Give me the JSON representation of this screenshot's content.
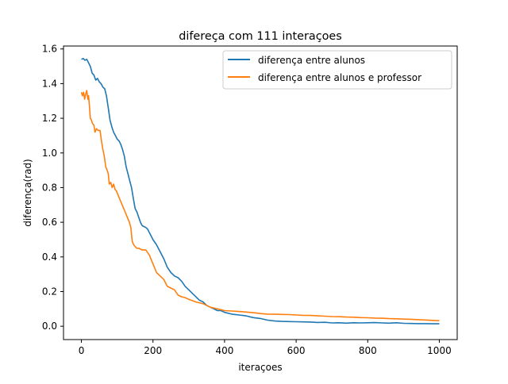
{
  "chart_data": {
    "type": "line",
    "title": "difereça com 111 interaçoes",
    "xlabel": "iteraçoes",
    "ylabel": "diferença(rad)",
    "xlim": [
      -50,
      1050
    ],
    "ylim": [
      -0.077,
      1.617
    ],
    "xticks": [
      {
        "value": 0,
        "label": "0"
      },
      {
        "value": 200,
        "label": "200"
      },
      {
        "value": 400,
        "label": "400"
      },
      {
        "value": 600,
        "label": "600"
      },
      {
        "value": 800,
        "label": "800"
      },
      {
        "value": 1000,
        "label": "1000"
      }
    ],
    "yticks": [
      {
        "value": 0.0,
        "label": "0.0"
      },
      {
        "value": 0.2,
        "label": "0.2"
      },
      {
        "value": 0.4,
        "label": "0.4"
      },
      {
        "value": 0.6,
        "label": "0.6"
      },
      {
        "value": 0.8,
        "label": "0.8"
      },
      {
        "value": 1.0,
        "label": "1.0"
      },
      {
        "value": 1.2,
        "label": "1.2"
      },
      {
        "value": 1.4,
        "label": "1.4"
      },
      {
        "value": 1.6,
        "label": "1.6"
      }
    ],
    "grid": false,
    "legend_position": "top-right",
    "series": [
      {
        "name": "diferença entre alunos",
        "color": "#1f77b4",
        "points": [
          [
            0,
            1.54
          ],
          [
            5,
            1.545
          ],
          [
            10,
            1.535
          ],
          [
            15,
            1.54
          ],
          [
            20,
            1.52
          ],
          [
            25,
            1.5
          ],
          [
            30,
            1.46
          ],
          [
            35,
            1.45
          ],
          [
            40,
            1.42
          ],
          [
            45,
            1.43
          ],
          [
            50,
            1.41
          ],
          [
            55,
            1.4
          ],
          [
            60,
            1.38
          ],
          [
            65,
            1.37
          ],
          [
            70,
            1.33
          ],
          [
            75,
            1.26
          ],
          [
            80,
            1.19
          ],
          [
            85,
            1.15
          ],
          [
            90,
            1.12
          ],
          [
            95,
            1.1
          ],
          [
            100,
            1.08
          ],
          [
            105,
            1.07
          ],
          [
            110,
            1.05
          ],
          [
            115,
            1.02
          ],
          [
            120,
            0.98
          ],
          [
            125,
            0.92
          ],
          [
            130,
            0.88
          ],
          [
            135,
            0.84
          ],
          [
            140,
            0.8
          ],
          [
            145,
            0.74
          ],
          [
            150,
            0.68
          ],
          [
            155,
            0.66
          ],
          [
            160,
            0.63
          ],
          [
            165,
            0.6
          ],
          [
            170,
            0.58
          ],
          [
            175,
            0.575
          ],
          [
            180,
            0.57
          ],
          [
            185,
            0.56
          ],
          [
            190,
            0.54
          ],
          [
            195,
            0.52
          ],
          [
            200,
            0.5
          ],
          [
            210,
            0.47
          ],
          [
            220,
            0.43
          ],
          [
            230,
            0.39
          ],
          [
            240,
            0.34
          ],
          [
            250,
            0.31
          ],
          [
            260,
            0.29
          ],
          [
            270,
            0.28
          ],
          [
            280,
            0.26
          ],
          [
            290,
            0.23
          ],
          [
            300,
            0.21
          ],
          [
            310,
            0.19
          ],
          [
            320,
            0.17
          ],
          [
            330,
            0.15
          ],
          [
            340,
            0.14
          ],
          [
            350,
            0.12
          ],
          [
            360,
            0.11
          ],
          [
            370,
            0.1
          ],
          [
            380,
            0.09
          ],
          [
            390,
            0.09
          ],
          [
            400,
            0.08
          ],
          [
            420,
            0.07
          ],
          [
            440,
            0.065
          ],
          [
            460,
            0.06
          ],
          [
            480,
            0.05
          ],
          [
            500,
            0.045
          ],
          [
            520,
            0.035
          ],
          [
            540,
            0.03
          ],
          [
            560,
            0.028
          ],
          [
            580,
            0.027
          ],
          [
            600,
            0.026
          ],
          [
            620,
            0.025
          ],
          [
            640,
            0.024
          ],
          [
            660,
            0.022
          ],
          [
            680,
            0.023
          ],
          [
            700,
            0.019
          ],
          [
            720,
            0.02
          ],
          [
            740,
            0.018
          ],
          [
            760,
            0.02
          ],
          [
            780,
            0.019
          ],
          [
            800,
            0.02
          ],
          [
            820,
            0.021
          ],
          [
            840,
            0.019
          ],
          [
            860,
            0.018
          ],
          [
            880,
            0.02
          ],
          [
            900,
            0.017
          ],
          [
            920,
            0.016
          ],
          [
            940,
            0.015
          ],
          [
            960,
            0.015
          ],
          [
            980,
            0.014
          ],
          [
            1000,
            0.014
          ]
        ]
      },
      {
        "name": "diferença entre alunos e professor",
        "color": "#ff7f0e",
        "points": [
          [
            0,
            1.35
          ],
          [
            3,
            1.33
          ],
          [
            6,
            1.35
          ],
          [
            9,
            1.31
          ],
          [
            12,
            1.34
          ],
          [
            15,
            1.36
          ],
          [
            18,
            1.31
          ],
          [
            20,
            1.33
          ],
          [
            22,
            1.28
          ],
          [
            25,
            1.2
          ],
          [
            28,
            1.19
          ],
          [
            31,
            1.17
          ],
          [
            35,
            1.16
          ],
          [
            38,
            1.12
          ],
          [
            42,
            1.14
          ],
          [
            47,
            1.13
          ],
          [
            52,
            1.13
          ],
          [
            56,
            1.07
          ],
          [
            60,
            1.02
          ],
          [
            64,
            0.98
          ],
          [
            68,
            0.92
          ],
          [
            72,
            0.9
          ],
          [
            75,
            0.88
          ],
          [
            78,
            0.82
          ],
          [
            82,
            0.83
          ],
          [
            86,
            0.8
          ],
          [
            90,
            0.82
          ],
          [
            94,
            0.79
          ],
          [
            98,
            0.78
          ],
          [
            102,
            0.76
          ],
          [
            106,
            0.74
          ],
          [
            110,
            0.72
          ],
          [
            114,
            0.7
          ],
          [
            118,
            0.68
          ],
          [
            122,
            0.66
          ],
          [
            126,
            0.64
          ],
          [
            130,
            0.62
          ],
          [
            134,
            0.6
          ],
          [
            138,
            0.57
          ],
          [
            142,
            0.49
          ],
          [
            146,
            0.47
          ],
          [
            150,
            0.46
          ],
          [
            155,
            0.45
          ],
          [
            160,
            0.45
          ],
          [
            170,
            0.44
          ],
          [
            180,
            0.44
          ],
          [
            190,
            0.41
          ],
          [
            200,
            0.36
          ],
          [
            210,
            0.31
          ],
          [
            220,
            0.29
          ],
          [
            230,
            0.27
          ],
          [
            240,
            0.23
          ],
          [
            250,
            0.22
          ],
          [
            260,
            0.21
          ],
          [
            270,
            0.18
          ],
          [
            280,
            0.17
          ],
          [
            290,
            0.165
          ],
          [
            300,
            0.155
          ],
          [
            320,
            0.14
          ],
          [
            340,
            0.13
          ],
          [
            360,
            0.11
          ],
          [
            380,
            0.1
          ],
          [
            400,
            0.09
          ],
          [
            420,
            0.088
          ],
          [
            440,
            0.085
          ],
          [
            460,
            0.082
          ],
          [
            480,
            0.078
          ],
          [
            500,
            0.073
          ],
          [
            520,
            0.07
          ],
          [
            540,
            0.069
          ],
          [
            560,
            0.068
          ],
          [
            580,
            0.067
          ],
          [
            600,
            0.065
          ],
          [
            620,
            0.063
          ],
          [
            640,
            0.062
          ],
          [
            660,
            0.06
          ],
          [
            680,
            0.058
          ],
          [
            700,
            0.056
          ],
          [
            720,
            0.055
          ],
          [
            740,
            0.053
          ],
          [
            760,
            0.052
          ],
          [
            780,
            0.05
          ],
          [
            800,
            0.049
          ],
          [
            820,
            0.047
          ],
          [
            840,
            0.046
          ],
          [
            860,
            0.044
          ],
          [
            880,
            0.043
          ],
          [
            900,
            0.041
          ],
          [
            920,
            0.04
          ],
          [
            940,
            0.038
          ],
          [
            960,
            0.036
          ],
          [
            980,
            0.034
          ],
          [
            1000,
            0.032
          ]
        ]
      }
    ]
  }
}
